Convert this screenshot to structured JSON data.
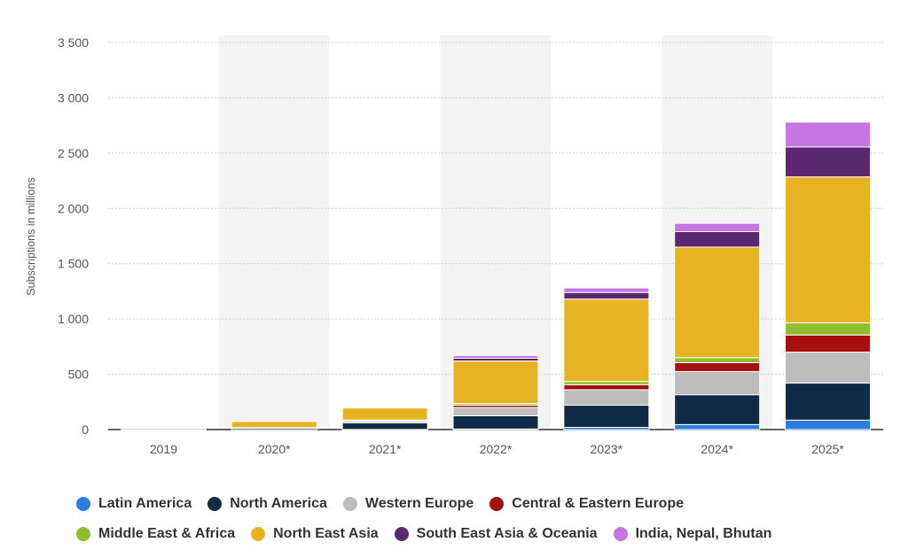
{
  "chart_data": {
    "type": "bar",
    "stacked": true,
    "title": "",
    "xlabel": "",
    "ylabel": "Subscriptions in millions",
    "ylim": [
      0,
      3500
    ],
    "yticks": [
      0,
      500,
      1000,
      1500,
      2000,
      2500,
      3000,
      3500
    ],
    "ytick_labels": [
      "0",
      "500",
      "1 000",
      "1 500",
      "2 000",
      "2 500",
      "3 000",
      "3 500"
    ],
    "grid": true,
    "legend_position": "bottom",
    "categories": [
      "2019",
      "2020*",
      "2021*",
      "2022*",
      "2023*",
      "2024*",
      "2025*"
    ],
    "series": [
      {
        "name": "Latin America",
        "color": "#2a7de1",
        "values": [
          0,
          0,
          1,
          5,
          20,
          45,
          85
        ]
      },
      {
        "name": "North America",
        "color": "#0f2b46",
        "values": [
          1,
          15,
          60,
          120,
          200,
          270,
          335
        ]
      },
      {
        "name": "Western Europe",
        "color": "#bdbdbd",
        "values": [
          0,
          2,
          15,
          75,
          140,
          210,
          280
        ]
      },
      {
        "name": "Central & Eastern Europe",
        "color": "#a50f0f",
        "values": [
          0,
          1,
          5,
          20,
          45,
          80,
          155
        ]
      },
      {
        "name": "Middle East & Africa",
        "color": "#8fbf2f",
        "values": [
          0,
          0,
          5,
          15,
          30,
          45,
          110
        ]
      },
      {
        "name": "North East Asia",
        "color": "#e8b323",
        "values": [
          0,
          55,
          110,
          385,
          745,
          1000,
          1320
        ]
      },
      {
        "name": "South East Asia & Oceania",
        "color": "#5b2771",
        "values": [
          0,
          0,
          3,
          25,
          60,
          140,
          270
        ]
      },
      {
        "name": "India, Nepal, Bhutan",
        "color": "#c576e0",
        "values": [
          0,
          0,
          1,
          25,
          40,
          75,
          225
        ]
      }
    ]
  }
}
